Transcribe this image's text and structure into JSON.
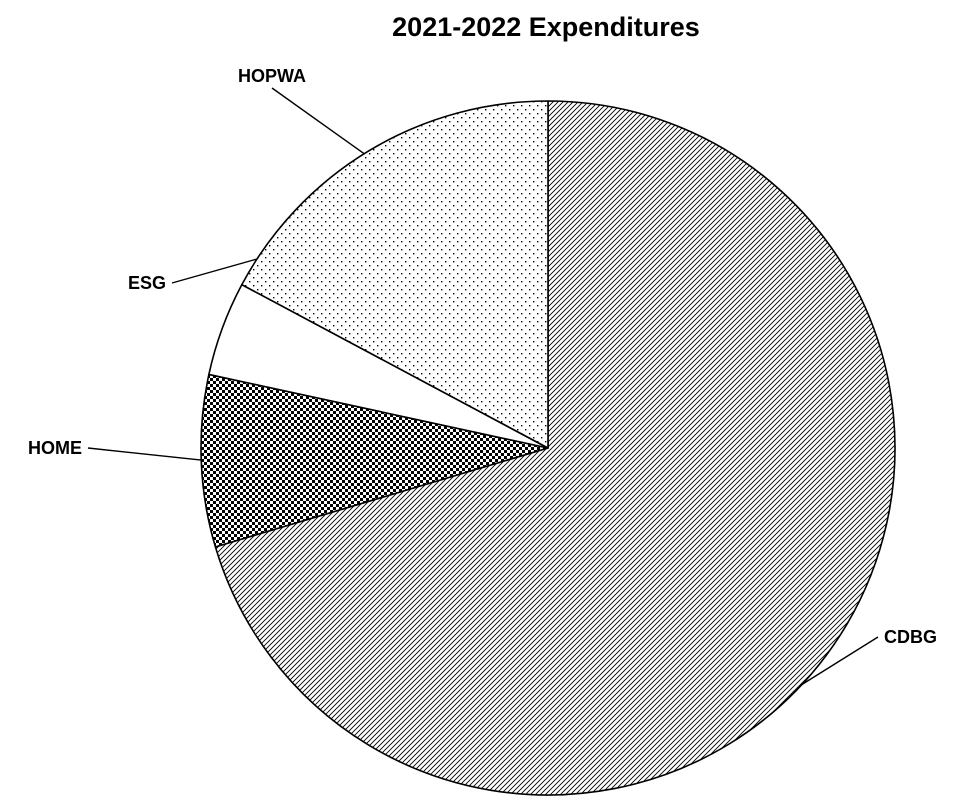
{
  "chart_data": {
    "type": "pie",
    "title": "2021-2022 Expenditures",
    "slices": [
      {
        "label": "CDBG",
        "value": 70.4,
        "pattern": "diagonal-hatch"
      },
      {
        "label": "HOME",
        "value": 8.0,
        "pattern": "checker-dense"
      },
      {
        "label": "ESG",
        "value": 4.4,
        "pattern": "solid-white"
      },
      {
        "label": "HOPWA",
        "value": 17.2,
        "pattern": "sparse-dots"
      }
    ],
    "start_angle": "12 o'clock",
    "direction": "clockwise",
    "legend": "none",
    "label_style": "leader-lines"
  }
}
